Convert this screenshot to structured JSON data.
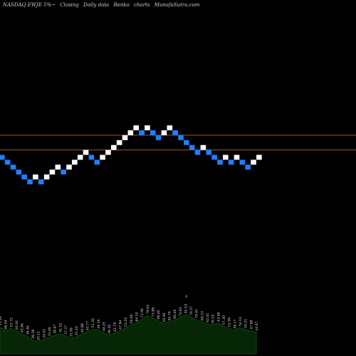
{
  "header": {
    "ticker": "NASDAQ EWJE 5%~",
    "closing": "Closing",
    "daily": "Daily data",
    "chart_kind": "Renko",
    "charts": "charts",
    "site": "MunafaSutra.com"
  },
  "colors": {
    "background": "#000000",
    "up_brick": "#ffffff",
    "down_brick": "#1e7fff",
    "resistance_line": "#a0522d",
    "volume_fill": "#062606",
    "volume_outline": "#0a5a0a"
  },
  "chart_data": {
    "type": "renko",
    "brick_levels": [
      9,
      8,
      7,
      6,
      5,
      4,
      5,
      4,
      5,
      6,
      7,
      6,
      7,
      8,
      9,
      10,
      9,
      8,
      9,
      10,
      11,
      12,
      13,
      14,
      15,
      14,
      15,
      14,
      13,
      14,
      15,
      14,
      13,
      12,
      11,
      10,
      11,
      10,
      9,
      8,
      9,
      8,
      9,
      8,
      7,
      8,
      9
    ],
    "brick_directions": [
      "down",
      "down",
      "down",
      "down",
      "down",
      "down",
      "up",
      "down",
      "up",
      "up",
      "up",
      "down",
      "up",
      "up",
      "up",
      "up",
      "down",
      "down",
      "up",
      "up",
      "up",
      "up",
      "up",
      "up",
      "up",
      "down",
      "up",
      "down",
      "down",
      "up",
      "up",
      "down",
      "down",
      "down",
      "down",
      "down",
      "up",
      "down",
      "down",
      "down",
      "up",
      "down",
      "up",
      "down",
      "down",
      "up",
      "up"
    ],
    "horizontal_lines": [
      13.5,
      10.5
    ],
    "volume_peak_marker": "0",
    "volume_labels": [
      "55.19",
      "48.04",
      "52.72",
      "46.92",
      "40.96",
      "36.46",
      "28.38",
      "25.11",
      "29.91",
      "33.46",
      "38.67",
      "41.52",
      "37.27",
      "31.99",
      "35.16",
      "40.88",
      "45.77",
      "51.36",
      "49.10",
      "44.25",
      "38.36",
      "42.79",
      "47.84",
      "53.22",
      "59.60",
      "64.10",
      "71.96",
      "79.64",
      "73.88",
      "68.40",
      "62.94",
      "65.76",
      "69.49",
      "74.83",
      "81.10",
      "76.57",
      "70.45",
      "66.23",
      "62.41",
      "59.10",
      "63.99",
      "57.30",
      "52.99",
      "49.17",
      "54.13",
      "50.21",
      "47.88",
      "44.67"
    ]
  }
}
